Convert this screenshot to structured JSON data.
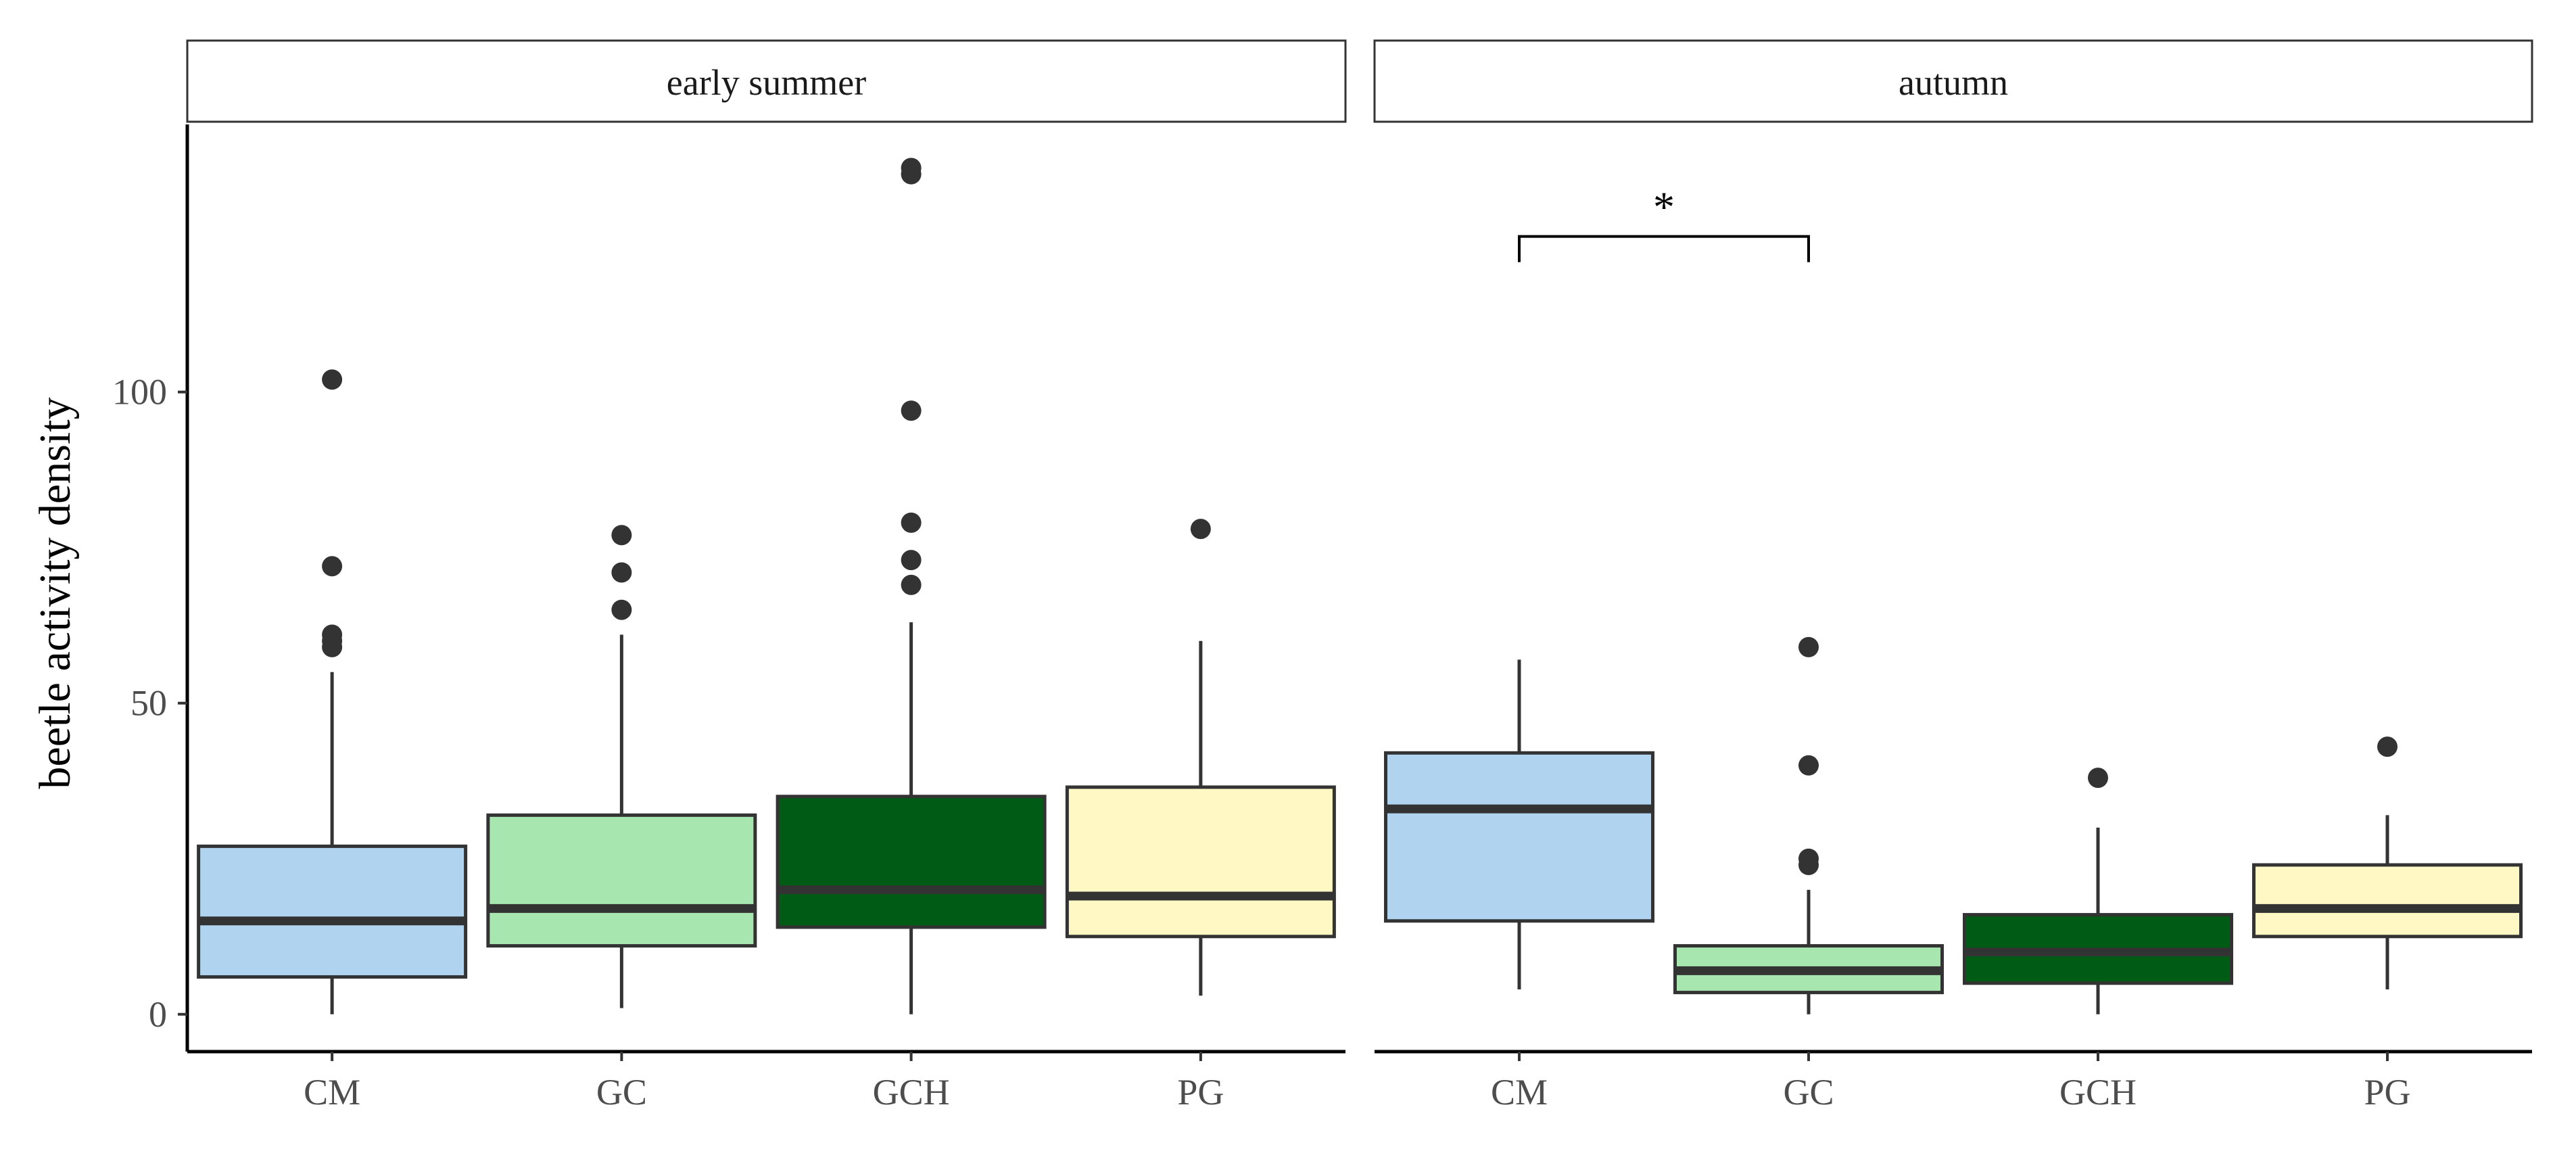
{
  "chart_data": {
    "type": "boxplot",
    "ylabel": "beetle activity density",
    "xlabel": "",
    "ylim": [
      -6,
      143
    ],
    "yticks": [
      0,
      50,
      100
    ],
    "ytick_labels": [
      "0",
      "50",
      "100"
    ],
    "categories": [
      "CM",
      "GC",
      "GCH",
      "PG"
    ],
    "colors": {
      "CM": "#b0d4f0",
      "GC": "#a8e6b0",
      "GCH": "#005c14",
      "PG": "#fff8c4",
      "outline": "#333333",
      "median": "#333333",
      "outlier": "#333333"
    },
    "panels": [
      {
        "strip": "early summer",
        "boxes": [
          {
            "category": "CM",
            "q1": 6,
            "median": 15,
            "q3": 27,
            "whisker_low": 0,
            "whisker_high": 55,
            "outliers": [
              59,
              60,
              61,
              72,
              102
            ]
          },
          {
            "category": "GC",
            "q1": 11,
            "median": 17,
            "q3": 32,
            "whisker_low": 1,
            "whisker_high": 61,
            "outliers": [
              65,
              71,
              77
            ]
          },
          {
            "category": "GCH",
            "q1": 14,
            "median": 20,
            "q3": 35,
            "whisker_low": 0,
            "whisker_high": 63,
            "outliers": [
              69,
              73,
              79,
              97,
              135,
              136
            ]
          },
          {
            "category": "PG",
            "q1": 12.5,
            "median": 19,
            "q3": 36.5,
            "whisker_low": 3,
            "whisker_high": 60,
            "outliers": [
              78
            ]
          }
        ],
        "annotations": []
      },
      {
        "strip": "autumn",
        "boxes": [
          {
            "category": "CM",
            "q1": 15,
            "median": 33,
            "q3": 42,
            "whisker_low": 4,
            "whisker_high": 57,
            "outliers": []
          },
          {
            "category": "GC",
            "q1": 3.5,
            "median": 7,
            "q3": 11,
            "whisker_low": 0,
            "whisker_high": 20,
            "outliers": [
              24,
              25,
              40,
              59
            ]
          },
          {
            "category": "GCH",
            "q1": 5,
            "median": 10,
            "q3": 16,
            "whisker_low": 0,
            "whisker_high": 30,
            "outliers": [
              38
            ]
          },
          {
            "category": "PG",
            "q1": 12.5,
            "median": 17,
            "q3": 24,
            "whisker_low": 4,
            "whisker_high": 32,
            "outliers": [
              43
            ]
          }
        ],
        "annotations": [
          {
            "type": "significance",
            "from": "CM",
            "to": "GC",
            "y": 125,
            "label": "*"
          }
        ]
      }
    ]
  }
}
